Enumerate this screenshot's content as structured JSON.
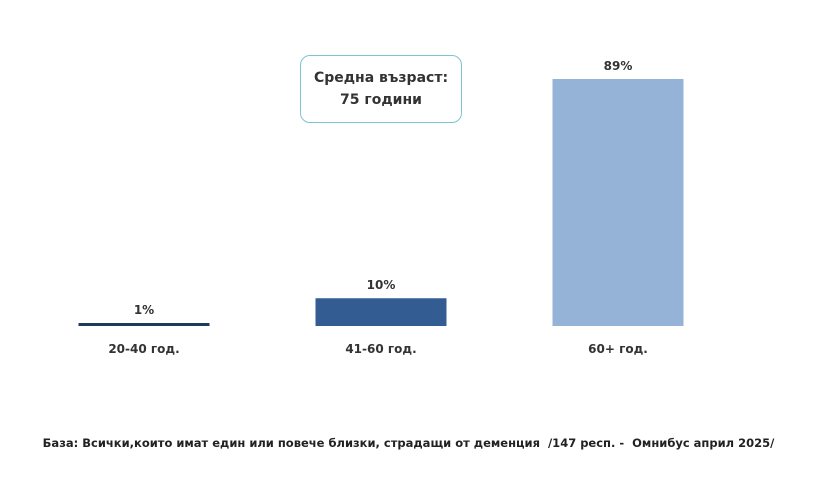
{
  "chart_data": {
    "type": "bar",
    "categories": [
      "20-40 год.",
      "41-60 год.",
      "60+ год."
    ],
    "values": [
      1,
      10,
      89
    ],
    "data_labels": [
      "1%",
      "10%",
      "89%"
    ],
    "colors": [
      "#1f3a5f",
      "#335d92",
      "#95b3d7"
    ],
    "ylim": [
      0,
      100
    ],
    "grid": false
  },
  "callout": {
    "line1": "Средна възраст:",
    "line2": "75 години"
  },
  "footnote": "База: Всички,които имат един или повече близки, страдащи от деменция  /147 респ. -  Омнибус април 2025/"
}
